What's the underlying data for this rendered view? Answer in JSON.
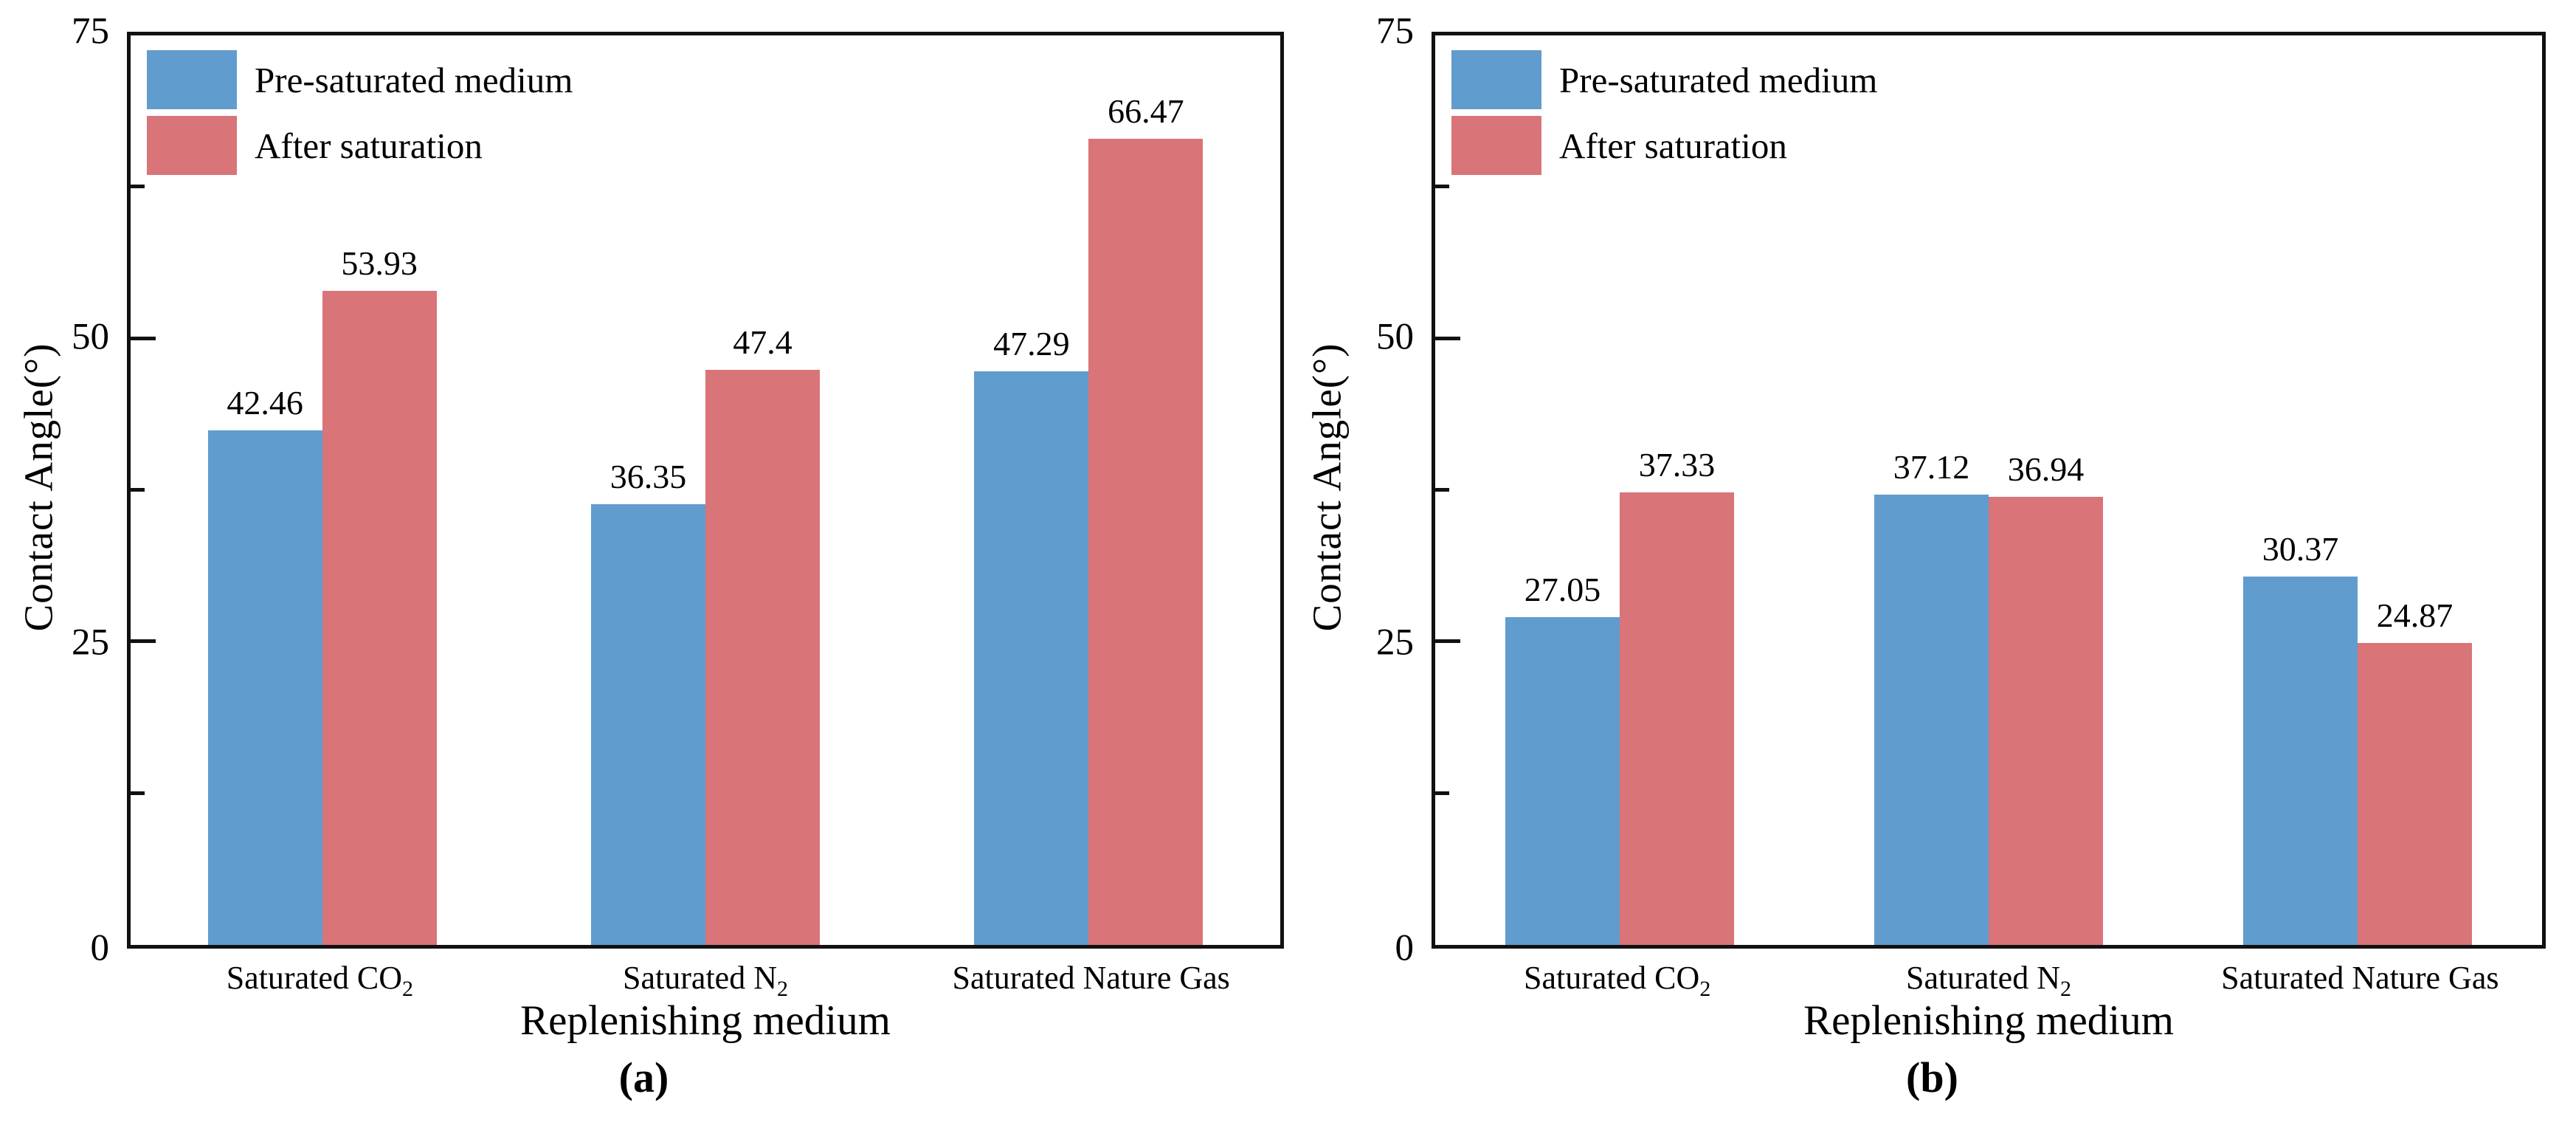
{
  "colors": {
    "pre_saturated": "#619CCE",
    "after_saturation": "#D97478",
    "axis": "#111111",
    "background": "#ffffff"
  },
  "chart_data": [
    {
      "type": "bar",
      "panel_label": "(a)",
      "xlabel": "Replenishing medium",
      "ylabel": "Contact Angle(°)",
      "ylim": [
        0,
        75
      ],
      "yticks": [
        0,
        25,
        50,
        75
      ],
      "yticks_minor": [
        12.5,
        37.5,
        62.5
      ],
      "grid": false,
      "legend_position": "top-left inside",
      "categories": [
        {
          "base": "Saturated CO",
          "sub": "2"
        },
        {
          "base": "Saturated N",
          "sub": "2"
        },
        {
          "base": "Saturated Nature Gas",
          "sub": ""
        }
      ],
      "series": [
        {
          "name": "Pre-saturated medium",
          "color": "#619CCE",
          "values": [
            42.46,
            36.35,
            47.29
          ]
        },
        {
          "name": "After saturation",
          "color": "#D97478",
          "values": [
            53.93,
            47.4,
            66.47
          ]
        }
      ]
    },
    {
      "type": "bar",
      "panel_label": "(b)",
      "xlabel": "Replenishing medium",
      "ylabel": "Contact Angle(°)",
      "ylim": [
        0,
        75
      ],
      "yticks": [
        0,
        25,
        50,
        75
      ],
      "yticks_minor": [
        12.5,
        37.5,
        62.5
      ],
      "grid": false,
      "legend_position": "top-left inside",
      "categories": [
        {
          "base": "Saturated CO",
          "sub": "2"
        },
        {
          "base": "Saturated N",
          "sub": "2"
        },
        {
          "base": "Saturated Nature Gas",
          "sub": ""
        }
      ],
      "series": [
        {
          "name": "Pre-saturated medium",
          "color": "#619CCE",
          "values": [
            27.05,
            37.12,
            30.37
          ]
        },
        {
          "name": "After saturation",
          "color": "#D97478",
          "values": [
            37.33,
            36.94,
            24.87
          ]
        }
      ]
    }
  ]
}
